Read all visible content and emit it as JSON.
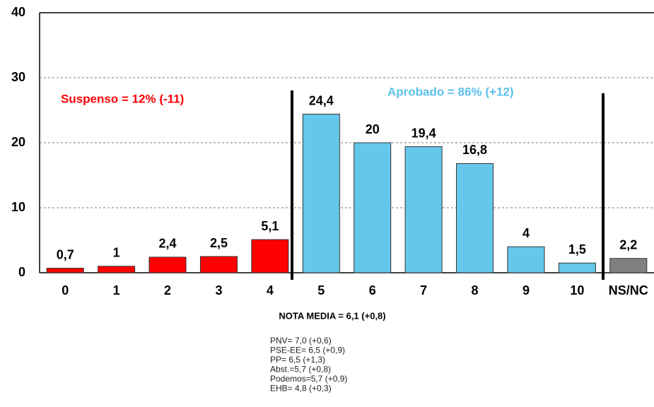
{
  "chart_data": {
    "type": "bar",
    "categories": [
      "0",
      "1",
      "2",
      "3",
      "4",
      "5",
      "6",
      "7",
      "8",
      "9",
      "10",
      "NS/NC"
    ],
    "values": [
      0.7,
      1,
      2.4,
      2.5,
      5.1,
      24.4,
      20,
      19.4,
      16.8,
      4,
      1.5,
      2.2
    ],
    "value_labels": [
      "0,7",
      "1",
      "2,4",
      "2,5",
      "5,1",
      "24,4",
      "20",
      "19,4",
      "16,8",
      "4",
      "1,5",
      "2,2"
    ],
    "colors": [
      "#ff0000",
      "#ff0000",
      "#ff0000",
      "#ff0000",
      "#ff0000",
      "#66c7ec",
      "#66c7ec",
      "#66c7ec",
      "#66c7ec",
      "#66c7ec",
      "#66c7ec",
      "#808080"
    ],
    "ylim": [
      0,
      40
    ],
    "yticks": [
      0,
      10,
      20,
      30,
      40
    ],
    "grid": true,
    "annotations": {
      "suspenso": "Suspenso = 12% (-11)",
      "aprobado": "Aprobado = 86% (+12)",
      "nota_media": "NOTA MEDIA = 6,1 (+0,8)",
      "notes": [
        "PNV= 7,0 (+0,6)",
        "PSE-EE= 6,5 (+0,9)",
        "PP= 6,5 (+1,3)",
        "Abst.=5,7 (+0,8)",
        "Podemos=5,7 (+0,9)",
        "EHB= 4,8 (+0,3)"
      ]
    }
  }
}
